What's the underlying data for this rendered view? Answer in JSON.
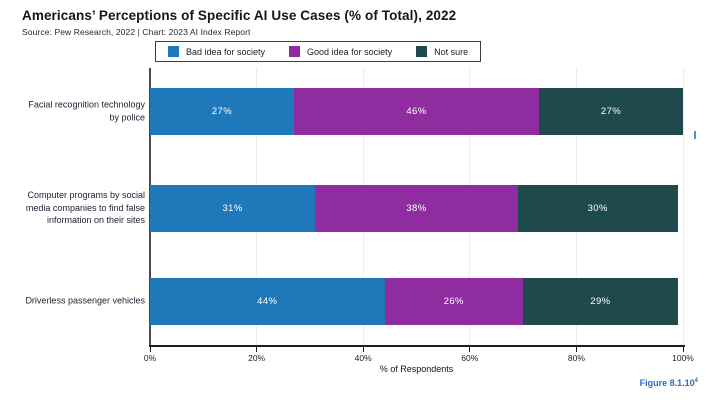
{
  "title": "Americans’ Perceptions of Specific AI Use Cases (% of Total), 2022",
  "source": "Source: Pew Research, 2022 | Chart: 2023 AI Index Report",
  "figure_label": "Figure 8.1.10",
  "figure_superscript": "4",
  "colors": {
    "bad_idea": "#1f78ba",
    "good_idea": "#8f2da0",
    "not_sure": "#1e4a4e",
    "figure_label": "#2b6cb8"
  },
  "category_lines": [
    [
      "Facial recognition technology",
      "by police"
    ],
    [
      "Computer programs by social",
      "media companies to find false",
      "information on their sites"
    ],
    [
      "Driverless passenger vehicles"
    ]
  ],
  "chart_data": {
    "type": "bar",
    "orientation": "horizontal",
    "stacked": true,
    "title": "Americans’ Perceptions of Specific AI Use Cases (% of Total), 2022",
    "categories": [
      "Facial recognition technology by police",
      "Computer programs by social media companies to find false information on their sites",
      "Driverless passenger vehicles"
    ],
    "series": [
      {
        "name": "Bad idea for society",
        "color": "#1f78ba",
        "values": [
          27,
          31,
          44
        ]
      },
      {
        "name": "Good idea for society",
        "color": "#8f2da0",
        "values": [
          46,
          38,
          26
        ]
      },
      {
        "name": "Not sure",
        "color": "#1e4a4e",
        "values": [
          27,
          30,
          29
        ]
      }
    ],
    "xlabel": "% of Respondents",
    "xlim": [
      0,
      100
    ],
    "xticks": [
      "0%",
      "20%",
      "40%",
      "60%",
      "80%",
      "100%"
    ],
    "legend_position": "top",
    "grid": "vertical",
    "value_suffix": "%"
  }
}
